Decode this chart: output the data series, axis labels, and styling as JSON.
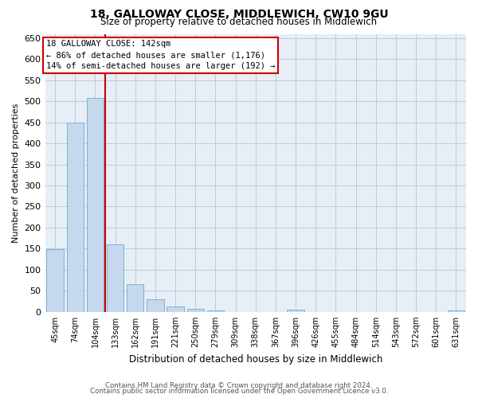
{
  "title": "18, GALLOWAY CLOSE, MIDDLEWICH, CW10 9GU",
  "subtitle": "Size of property relative to detached houses in Middlewich",
  "xlabel": "Distribution of detached houses by size in Middlewich",
  "ylabel": "Number of detached properties",
  "bar_color": "#c5d8ed",
  "bar_edge_color": "#7ab3d4",
  "background_color": "#e8eef6",
  "categories": [
    "45sqm",
    "74sqm",
    "104sqm",
    "133sqm",
    "162sqm",
    "191sqm",
    "221sqm",
    "250sqm",
    "279sqm",
    "309sqm",
    "338sqm",
    "367sqm",
    "396sqm",
    "426sqm",
    "455sqm",
    "484sqm",
    "514sqm",
    "543sqm",
    "572sqm",
    "601sqm",
    "631sqm"
  ],
  "values": [
    148,
    449,
    508,
    160,
    65,
    30,
    13,
    7,
    4,
    0,
    0,
    0,
    5,
    0,
    0,
    0,
    0,
    0,
    0,
    0,
    4
  ],
  "property_bin_index": 3,
  "annotation_line1": "18 GALLOWAY CLOSE: 142sqm",
  "annotation_line2": "← 86% of detached houses are smaller (1,176)",
  "annotation_line3": "14% of semi-detached houses are larger (192) →",
  "vline_color": "#cc0000",
  "annotation_box_facecolor": "#ffffff",
  "annotation_box_edgecolor": "#cc0000",
  "footer1": "Contains HM Land Registry data © Crown copyright and database right 2024.",
  "footer2": "Contains public sector information licensed under the Open Government Licence v3.0.",
  "ylim": [
    0,
    660
  ],
  "yticks": [
    0,
    50,
    100,
    150,
    200,
    250,
    300,
    350,
    400,
    450,
    500,
    550,
    600,
    650
  ]
}
